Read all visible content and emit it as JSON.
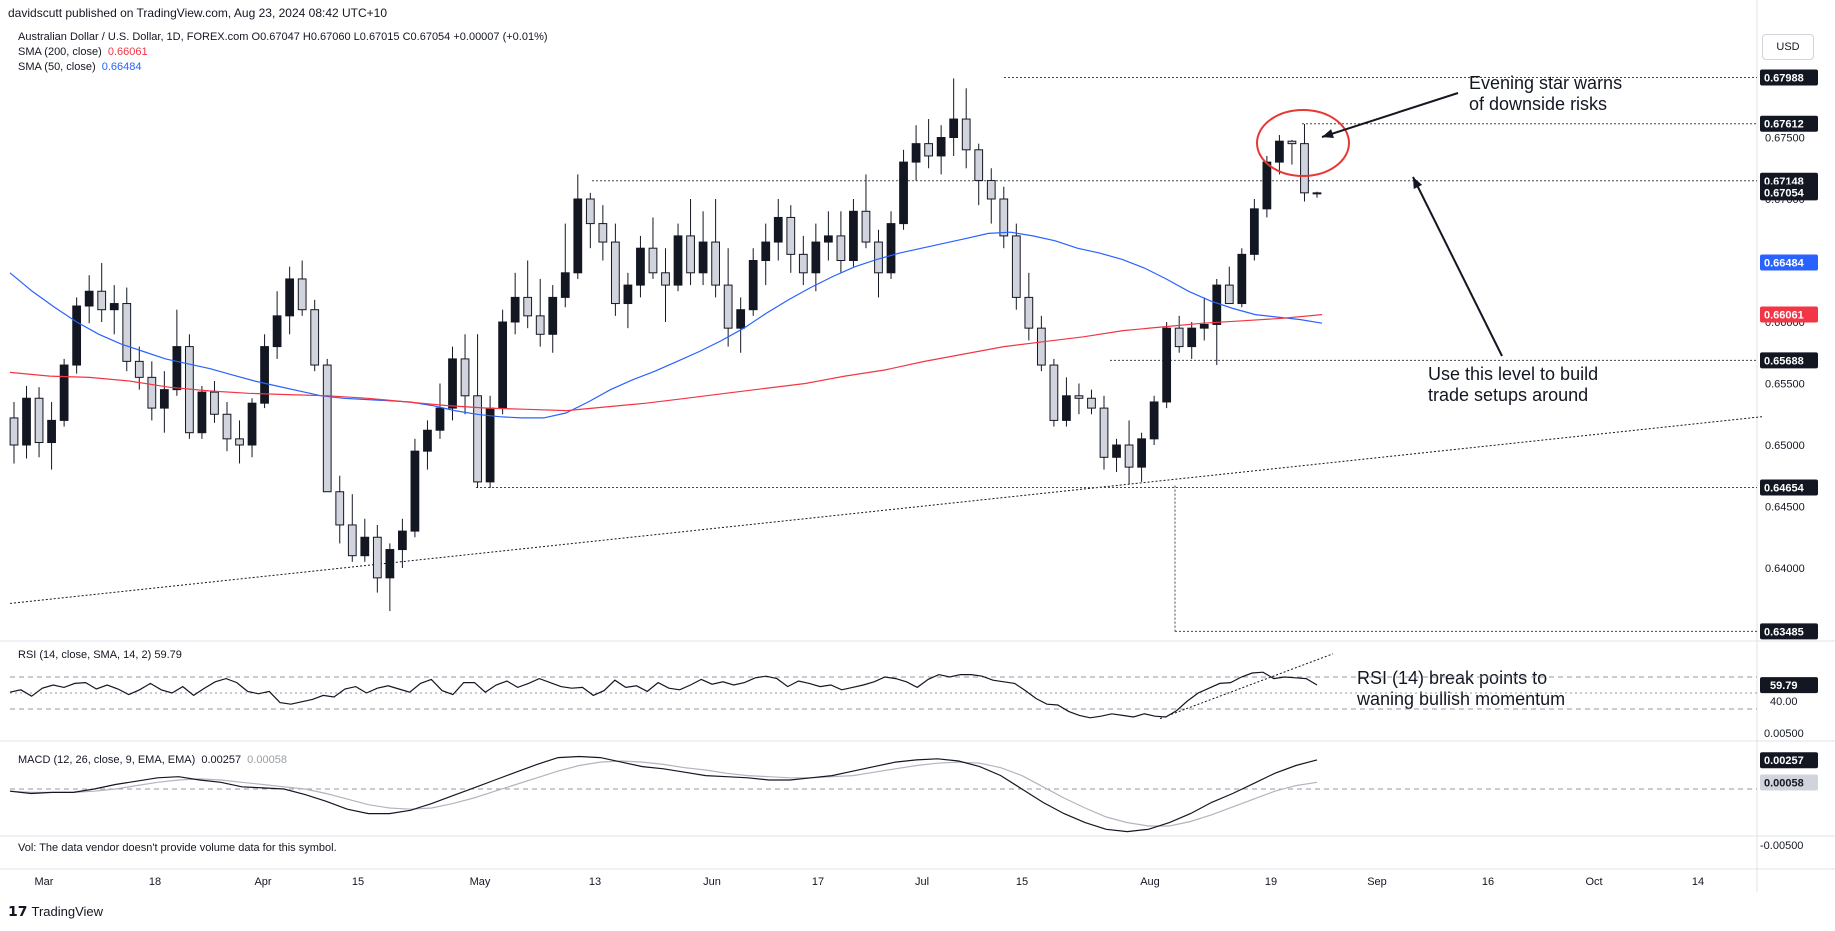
{
  "publisher_line": "davidscutt published on TradingView.com, Aug 23, 2024 08:42 UTC+10",
  "instrument_line": "Australian Dollar / U.S. Dollar, 1D, FOREX.com  O0.67047 H0.67060 L0.67015 C0.67054 +0.00007 (+0.01%)",
  "sma200": {
    "label": "SMA (200, close)",
    "value": "0.66061",
    "color": "#f23645"
  },
  "sma50": {
    "label": "SMA (50, close)",
    "value": "0.66484",
    "color": "#2962ff"
  },
  "currency_button": "USD",
  "rsi_legend": "RSI (14, close, SMA, 14, 2)  59.79",
  "macd_legend_label": "MACD (12, 26, close, 9, EMA, EMA)",
  "macd_legend_v1": "0.00257",
  "macd_legend_v2": "0.00058",
  "volume_note": "Vol: The data vendor doesn't provide volume data for this symbol.",
  "footer_brand": "TradingView",
  "annotations": {
    "evening_star": "Evening star warns\nof downside risks",
    "level": "Use this level to build\ntrade setups around",
    "rsi": "RSI (14) break points to\nwaning bullish momentum"
  },
  "chart_data": {
    "type": "candlestick",
    "title": "Australian Dollar / U.S. Dollar, 1D, FOREX.com",
    "xlabel": "",
    "ylabel": "",
    "x_ticks": [
      "Mar",
      "18",
      "Apr",
      "15",
      "May",
      "13",
      "Jun",
      "17",
      "Jul",
      "15",
      "Aug",
      "19",
      "Sep",
      "16",
      "Oct",
      "14"
    ],
    "ylim": [
      0.6345,
      0.681
    ],
    "y_ticks": [
      "0.67500",
      "0.67000",
      "0.66500",
      "0.66000",
      "0.65500",
      "0.65000",
      "0.64500",
      "0.64000"
    ],
    "price_labels": [
      {
        "value": 0.67988,
        "text": "0.67988",
        "kind": "level"
      },
      {
        "value": 0.67612,
        "text": "0.67612",
        "kind": "level"
      },
      {
        "value": 0.67148,
        "text": "0.67148",
        "kind": "level"
      },
      {
        "value": 0.67054,
        "text": "0.67054",
        "kind": "last"
      },
      {
        "value": 0.66484,
        "text": "0.66484",
        "kind": "sma50"
      },
      {
        "value": 0.66061,
        "text": "0.66061",
        "kind": "sma200"
      },
      {
        "value": 0.65688,
        "text": "0.65688",
        "kind": "level"
      },
      {
        "value": 0.64654,
        "text": "0.64654",
        "kind": "level"
      },
      {
        "value": 0.63485,
        "text": "0.63485",
        "kind": "level"
      }
    ],
    "horizontal_levels": [
      0.67988,
      0.67612,
      0.67148,
      0.65688,
      0.64654,
      0.63485
    ],
    "candles_ohlc": [
      [
        0.6522,
        0.6535,
        0.6485,
        0.65
      ],
      [
        0.65,
        0.6548,
        0.6489,
        0.6538
      ],
      [
        0.6538,
        0.6547,
        0.649,
        0.6502
      ],
      [
        0.6502,
        0.6535,
        0.648,
        0.652
      ],
      [
        0.652,
        0.657,
        0.6515,
        0.6565
      ],
      [
        0.6565,
        0.662,
        0.6558,
        0.6613
      ],
      [
        0.6613,
        0.6638,
        0.6599,
        0.6625
      ],
      [
        0.6625,
        0.6648,
        0.66,
        0.661
      ],
      [
        0.661,
        0.663,
        0.659,
        0.6615
      ],
      [
        0.6615,
        0.6628,
        0.656,
        0.6568
      ],
      [
        0.6568,
        0.658,
        0.6545,
        0.6555
      ],
      [
        0.6555,
        0.6568,
        0.652,
        0.653
      ],
      [
        0.653,
        0.656,
        0.651,
        0.6545
      ],
      [
        0.6545,
        0.661,
        0.654,
        0.658
      ],
      [
        0.658,
        0.659,
        0.6505,
        0.651
      ],
      [
        0.651,
        0.6548,
        0.6505,
        0.6543
      ],
      [
        0.6543,
        0.6552,
        0.6518,
        0.6525
      ],
      [
        0.6525,
        0.6535,
        0.6495,
        0.6505
      ],
      [
        0.6505,
        0.652,
        0.6485,
        0.65
      ],
      [
        0.65,
        0.6538,
        0.649,
        0.6534
      ],
      [
        0.6534,
        0.659,
        0.653,
        0.658
      ],
      [
        0.658,
        0.6625,
        0.657,
        0.6605
      ],
      [
        0.6605,
        0.6645,
        0.659,
        0.6635
      ],
      [
        0.6635,
        0.665,
        0.6605,
        0.661
      ],
      [
        0.661,
        0.6618,
        0.656,
        0.6565
      ],
      [
        0.6565,
        0.657,
        0.65,
        0.6462
      ],
      [
        0.6462,
        0.6475,
        0.642,
        0.6435
      ],
      [
        0.6435,
        0.646,
        0.6405,
        0.641
      ],
      [
        0.641,
        0.644,
        0.6405,
        0.6425
      ],
      [
        0.6425,
        0.6435,
        0.638,
        0.6392
      ],
      [
        0.6392,
        0.642,
        0.6365,
        0.6415
      ],
      [
        0.6415,
        0.644,
        0.64,
        0.643
      ],
      [
        0.643,
        0.6505,
        0.6425,
        0.6495
      ],
      [
        0.6495,
        0.652,
        0.648,
        0.6512
      ],
      [
        0.6512,
        0.655,
        0.6505,
        0.653
      ],
      [
        0.653,
        0.658,
        0.652,
        0.657
      ],
      [
        0.657,
        0.659,
        0.6525,
        0.654
      ],
      [
        0.654,
        0.659,
        0.6465,
        0.647
      ],
      [
        0.647,
        0.654,
        0.6465,
        0.653
      ],
      [
        0.653,
        0.661,
        0.6525,
        0.66
      ],
      [
        0.66,
        0.664,
        0.659,
        0.662
      ],
      [
        0.662,
        0.665,
        0.6595,
        0.6605
      ],
      [
        0.6605,
        0.6635,
        0.658,
        0.659
      ],
      [
        0.659,
        0.663,
        0.6575,
        0.662
      ],
      [
        0.662,
        0.668,
        0.6612,
        0.664
      ],
      [
        0.664,
        0.672,
        0.6635,
        0.67
      ],
      [
        0.67,
        0.6705,
        0.666,
        0.668
      ],
      [
        0.668,
        0.6695,
        0.665,
        0.6665
      ],
      [
        0.6665,
        0.668,
        0.6605,
        0.6615
      ],
      [
        0.6615,
        0.664,
        0.6595,
        0.663
      ],
      [
        0.663,
        0.667,
        0.662,
        0.666
      ],
      [
        0.666,
        0.6685,
        0.6635,
        0.664
      ],
      [
        0.664,
        0.666,
        0.66,
        0.663
      ],
      [
        0.663,
        0.668,
        0.6625,
        0.667
      ],
      [
        0.667,
        0.67,
        0.663,
        0.664
      ],
      [
        0.664,
        0.669,
        0.663,
        0.6665
      ],
      [
        0.6665,
        0.67,
        0.662,
        0.663
      ],
      [
        0.663,
        0.666,
        0.658,
        0.6595
      ],
      [
        0.6595,
        0.662,
        0.6575,
        0.661
      ],
      [
        0.661,
        0.666,
        0.6605,
        0.665
      ],
      [
        0.665,
        0.668,
        0.663,
        0.6665
      ],
      [
        0.6665,
        0.67,
        0.665,
        0.6685
      ],
      [
        0.6685,
        0.6695,
        0.664,
        0.6655
      ],
      [
        0.6655,
        0.667,
        0.663,
        0.664
      ],
      [
        0.664,
        0.668,
        0.6625,
        0.6665
      ],
      [
        0.6665,
        0.669,
        0.665,
        0.667
      ],
      [
        0.667,
        0.669,
        0.664,
        0.665
      ],
      [
        0.665,
        0.67,
        0.6645,
        0.669
      ],
      [
        0.669,
        0.672,
        0.666,
        0.6665
      ],
      [
        0.6665,
        0.6675,
        0.662,
        0.664
      ],
      [
        0.664,
        0.669,
        0.6635,
        0.668
      ],
      [
        0.668,
        0.674,
        0.6675,
        0.673
      ],
      [
        0.673,
        0.676,
        0.6715,
        0.6745
      ],
      [
        0.6745,
        0.6765,
        0.6725,
        0.6735
      ],
      [
        0.6735,
        0.676,
        0.672,
        0.675
      ],
      [
        0.675,
        0.6798,
        0.6735,
        0.6765
      ],
      [
        0.6765,
        0.679,
        0.6725,
        0.674
      ],
      [
        0.674,
        0.6745,
        0.6695,
        0.6715
      ],
      [
        0.6715,
        0.6725,
        0.668,
        0.67
      ],
      [
        0.67,
        0.671,
        0.666,
        0.667
      ],
      [
        0.667,
        0.668,
        0.661,
        0.662
      ],
      [
        0.662,
        0.664,
        0.6585,
        0.6595
      ],
      [
        0.6595,
        0.6605,
        0.656,
        0.6565
      ],
      [
        0.6565,
        0.657,
        0.6515,
        0.652
      ],
      [
        0.652,
        0.6555,
        0.6515,
        0.654
      ],
      [
        0.654,
        0.655,
        0.6525,
        0.6538
      ],
      [
        0.6538,
        0.6545,
        0.6525,
        0.653
      ],
      [
        0.653,
        0.654,
        0.648,
        0.649
      ],
      [
        0.649,
        0.6505,
        0.6478,
        0.65
      ],
      [
        0.65,
        0.652,
        0.6468,
        0.6482
      ],
      [
        0.6482,
        0.651,
        0.647,
        0.6505
      ],
      [
        0.6505,
        0.654,
        0.65,
        0.6535
      ],
      [
        0.6535,
        0.66,
        0.653,
        0.6595
      ],
      [
        0.6595,
        0.6605,
        0.6575,
        0.658
      ],
      [
        0.658,
        0.66,
        0.657,
        0.6595
      ],
      [
        0.6595,
        0.662,
        0.6585,
        0.6598
      ],
      [
        0.6598,
        0.6635,
        0.6565,
        0.663
      ],
      [
        0.663,
        0.6645,
        0.6615,
        0.6615
      ],
      [
        0.6615,
        0.666,
        0.6612,
        0.6655
      ],
      [
        0.6655,
        0.67,
        0.665,
        0.6692
      ],
      [
        0.6692,
        0.6735,
        0.6685,
        0.673
      ],
      [
        0.673,
        0.6752,
        0.672,
        0.6747
      ],
      [
        0.6747,
        0.6748,
        0.6728,
        0.6745
      ],
      [
        0.6745,
        0.6761,
        0.6698,
        0.6705
      ],
      [
        0.6705,
        0.6706,
        0.6701,
        0.6705
      ]
    ],
    "sma50_points": [
      0.664,
      0.6625,
      0.6612,
      0.66,
      0.659,
      0.6582,
      0.6576,
      0.657,
      0.6566,
      0.6562,
      0.6557,
      0.6552,
      0.6548,
      0.6544,
      0.654,
      0.6538,
      0.6537,
      0.6536,
      0.6535,
      0.6532,
      0.6528,
      0.6525,
      0.6523,
      0.6522,
      0.6522,
      0.6526,
      0.6535,
      0.6545,
      0.6553,
      0.656,
      0.6568,
      0.6576,
      0.6585,
      0.6595,
      0.6607,
      0.6618,
      0.6628,
      0.6637,
      0.6645,
      0.6651,
      0.6656,
      0.666,
      0.6664,
      0.6668,
      0.6672,
      0.6673,
      0.667,
      0.6666,
      0.666,
      0.6656,
      0.6651,
      0.6644,
      0.6635,
      0.6625,
      0.6617,
      0.6611,
      0.6606,
      0.6604,
      0.6602,
      0.6599
    ],
    "sma200_points": [
      0.6559,
      0.6556,
      0.6555,
      0.6552,
      0.6547,
      0.6544,
      0.6542,
      0.6541,
      0.654,
      0.6538,
      0.6535,
      0.6532,
      0.653,
      0.6529,
      0.6528,
      0.6531,
      0.6534,
      0.6538,
      0.6542,
      0.6546,
      0.655,
      0.6556,
      0.6561,
      0.6568,
      0.6574,
      0.658,
      0.6584,
      0.6588,
      0.6593,
      0.6596,
      0.6599,
      0.6601,
      0.6603,
      0.6606
    ],
    "rsi_value": 59.79,
    "rsi_label": "59.79",
    "rsi_tick": "40.00",
    "rsi_band": [
      30,
      70
    ],
    "macd": {
      "macd": 0.00257,
      "signal": 0.00058,
      "labels": [
        "0.00257",
        "0.00058",
        "0.00500",
        "-0.00500"
      ]
    },
    "rsi_series": [
      51,
      54,
      46,
      56,
      60,
      57,
      62,
      63,
      55,
      60,
      55,
      48,
      54,
      62,
      54,
      50,
      58,
      47,
      56,
      64,
      68,
      63,
      52,
      49,
      52,
      38,
      36,
      39,
      42,
      47,
      45,
      55,
      58,
      50,
      56,
      59,
      55,
      51,
      62,
      67,
      53,
      48,
      63,
      63,
      51,
      60,
      65,
      57,
      62,
      68,
      63,
      58,
      56,
      57,
      47,
      53,
      66,
      57,
      59,
      52,
      63,
      56,
      54,
      60,
      67,
      61,
      64,
      60,
      63,
      69,
      71,
      68,
      58,
      65,
      62,
      58,
      60,
      54,
      57,
      60,
      64,
      70,
      68,
      64,
      57,
      67,
      73,
      70,
      73,
      73,
      71,
      66,
      64,
      62,
      53,
      43,
      36,
      35,
      27,
      22,
      19,
      21,
      24,
      22,
      20,
      24,
      21,
      20,
      28,
      40,
      50,
      56,
      62,
      63,
      70,
      75,
      76,
      68,
      70,
      69,
      68,
      60
    ],
    "macd_series": [
      -0.0002,
      -0.0004,
      -0.0003,
      -0.0003,
      0.0,
      0.0004,
      0.0007,
      0.001,
      0.0011,
      0.0008,
      0.0006,
      0.0002,
      0.0001,
      0.0,
      -0.0005,
      -0.0011,
      -0.0018,
      -0.0022,
      -0.0022,
      -0.0019,
      -0.0013,
      -0.0006,
      0.0001,
      0.0008,
      0.0015,
      0.0022,
      0.0028,
      0.0029,
      0.0028,
      0.0024,
      0.002,
      0.0018,
      0.0015,
      0.0012,
      0.0011,
      0.001,
      0.0008,
      0.0008,
      0.001,
      0.0012,
      0.0016,
      0.002,
      0.0024,
      0.0026,
      0.0027,
      0.0025,
      0.002,
      0.0012,
      0.0,
      -0.0012,
      -0.0022,
      -0.003,
      -0.0036,
      -0.0038,
      -0.0036,
      -0.003,
      -0.0022,
      -0.0012,
      -0.0004,
      0.0005,
      0.0014,
      0.0021,
      0.0026
    ],
    "macd_signal_series": [
      -0.0002,
      -0.0003,
      -0.0003,
      -0.0003,
      -0.0002,
      0.0,
      0.0003,
      0.0006,
      0.0008,
      0.0009,
      0.0008,
      0.0006,
      0.0004,
      0.0002,
      0.0,
      -0.0004,
      -0.0009,
      -0.0014,
      -0.0017,
      -0.0018,
      -0.0017,
      -0.0013,
      -0.0008,
      -0.0002,
      0.0004,
      0.001,
      0.0016,
      0.0021,
      0.0024,
      0.0025,
      0.0024,
      0.0022,
      0.0019,
      0.0017,
      0.0014,
      0.0012,
      0.0011,
      0.001,
      0.001,
      0.0011,
      0.0012,
      0.0015,
      0.0018,
      0.0021,
      0.0023,
      0.0024,
      0.0023,
      0.0019,
      0.0012,
      0.0002,
      -0.0008,
      -0.0017,
      -0.0025,
      -0.003,
      -0.0033,
      -0.0033,
      -0.0029,
      -0.0023,
      -0.0016,
      -0.0009,
      -0.0002,
      0.0003,
      0.0006
    ]
  }
}
